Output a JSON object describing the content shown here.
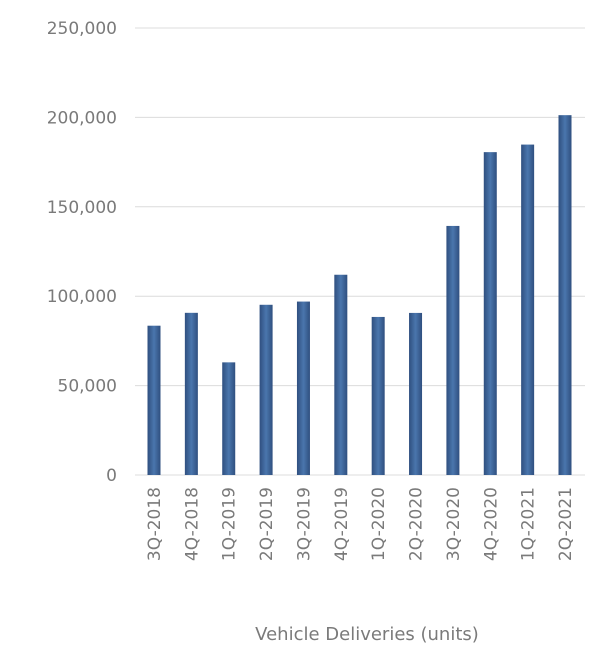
{
  "chart_data": {
    "type": "bar",
    "categories": [
      "3Q-2018",
      "4Q-2018",
      "1Q-2019",
      "2Q-2019",
      "3Q-2019",
      "4Q-2019",
      "1Q-2020",
      "2Q-2020",
      "3Q-2020",
      "4Q-2020",
      "1Q-2021",
      "2Q-2021"
    ],
    "values": [
      83500,
      90700,
      63000,
      95200,
      97000,
      112000,
      88400,
      90650,
      139300,
      180570,
      184800,
      201250
    ],
    "xlabel": "Vehicle Deliveries (units)",
    "ylabel": "",
    "ylim": [
      0,
      250000
    ],
    "yticks": [
      0,
      50000,
      100000,
      150000,
      200000,
      250000
    ],
    "ytick_labels": [
      "0",
      "50,000",
      "100,000",
      "150,000",
      "200,000",
      "250,000"
    ],
    "grid": true,
    "colors": {
      "bar_edge": "#2f4f7f",
      "bar_center": "#4a76ad",
      "grid": "#dcdcdc",
      "text": "#7a7a7a"
    }
  }
}
